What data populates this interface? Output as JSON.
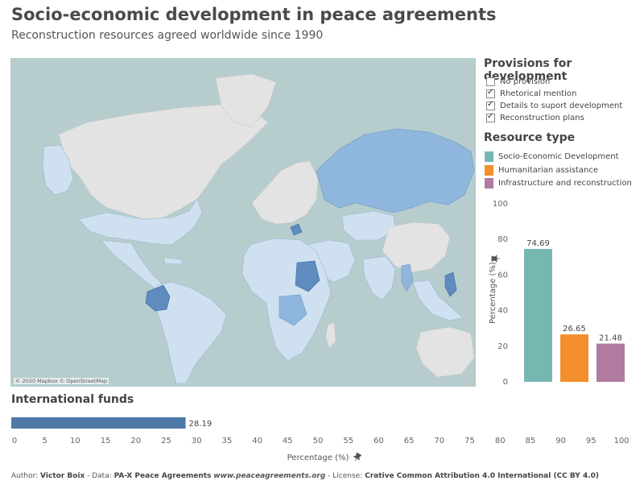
{
  "title": "Socio-economic development in peace agreements",
  "subtitle": "Reconstruction resources agreed worldwide since 1990",
  "map": {
    "credit": "© 2020 Mapbox © OpenStreetMap"
  },
  "provisions": {
    "title": "Provisions for development",
    "items": [
      {
        "label": "No provision",
        "checked": false
      },
      {
        "label": "Rhetorical mention",
        "checked": true
      },
      {
        "label": "Details to suport development",
        "checked": true
      },
      {
        "label": "Reconstruction plans",
        "checked": true
      }
    ]
  },
  "resource_type": {
    "title": "Resource type",
    "items": [
      {
        "label": "Socio-Economic Development",
        "color": "#76b7b2"
      },
      {
        "label": "Humanitarian assistance",
        "color": "#f28e2b"
      },
      {
        "label": "Infrastructure and reconstruction",
        "color": "#b07aa1"
      }
    ]
  },
  "international_funds": {
    "title": "International funds"
  },
  "chart_data": [
    {
      "type": "bar",
      "categories": [
        "Socio-Economic Development",
        "Humanitarian assistance",
        "Infrastructure and reconstruction"
      ],
      "values": [
        74.69,
        26.65,
        21.48
      ],
      "data_labels": [
        "74.69",
        "26.65",
        "21.48"
      ],
      "colors": [
        "#76b7b2",
        "#f28e2b",
        "#b07aa1"
      ],
      "ylabel": "Percentage (%)",
      "ylim": [
        0,
        100
      ],
      "yticks": [
        0,
        20,
        40,
        60,
        80,
        100
      ],
      "grid": false
    },
    {
      "type": "bar",
      "orientation": "horizontal",
      "categories": [
        "International funds"
      ],
      "values": [
        28.19
      ],
      "data_labels": [
        "28.19"
      ],
      "colors": [
        "#4e79a7"
      ],
      "xlabel": "Percentage (%)",
      "xlim": [
        0,
        100
      ],
      "xticks": [
        0,
        5,
        10,
        15,
        20,
        25,
        30,
        35,
        40,
        45,
        50,
        55,
        60,
        65,
        70,
        75,
        80,
        85,
        90,
        95,
        100
      ],
      "grid": false
    }
  ],
  "footer": {
    "author_prefix": "Author: ",
    "author": "Victor Boix",
    "data_prefix": " - Data: ",
    "data_source": "PA-X Peace Agreements",
    "data_url": "www.peaceagreements.org",
    "license_prefix": " - License: ",
    "license": "Crative Common Attribution 4.0 International (CC BY 4.0)"
  },
  "icons": {
    "axis_pin": "pin-icon"
  }
}
